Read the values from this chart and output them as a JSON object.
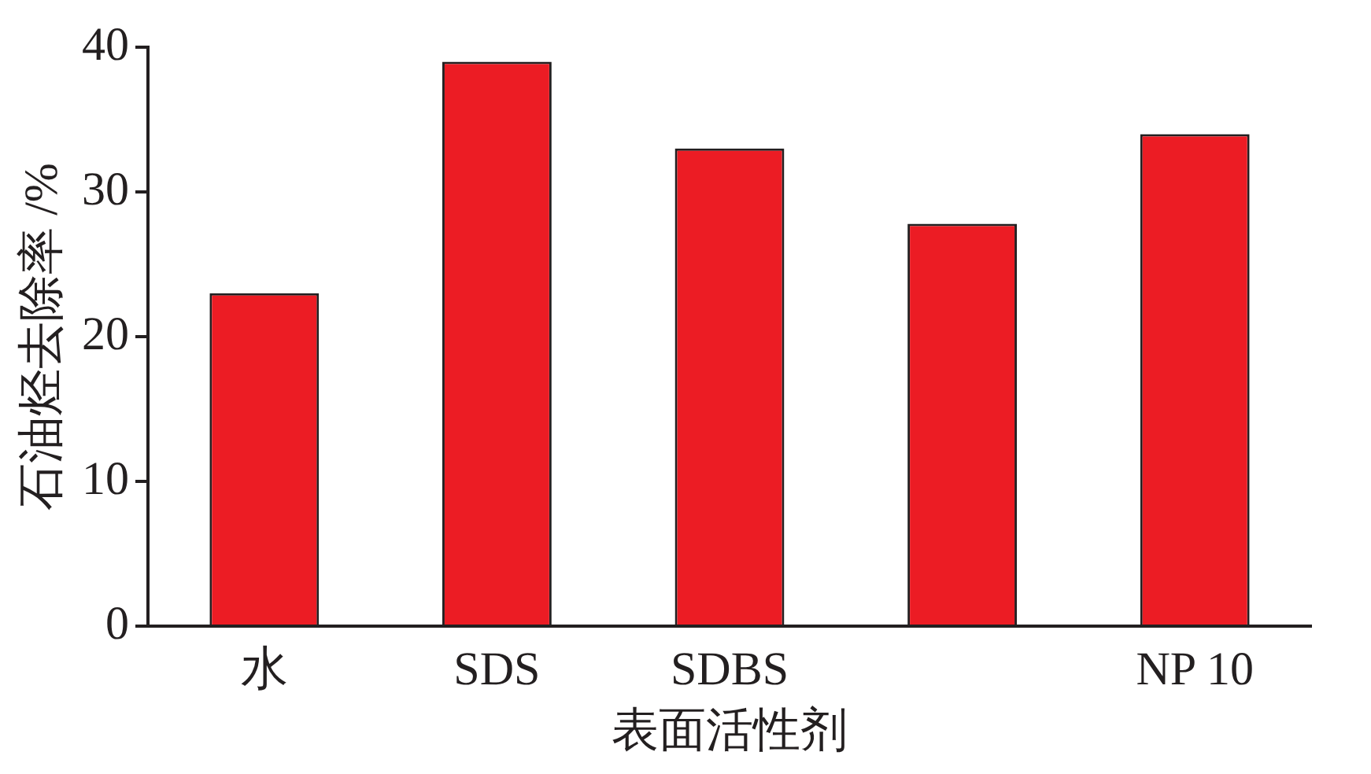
{
  "chart_data": {
    "type": "bar",
    "xlabel": "表面活性剂",
    "ylabel": "石油烃去除率 /%",
    "categories": [
      "水",
      "SDS",
      "SDBS",
      null,
      "NP 10"
    ],
    "values": [
      23,
      39,
      33,
      27.8,
      34
    ],
    "color": "#ec1c24",
    "ylim": [
      0,
      40
    ],
    "yticks": [
      0,
      10,
      20,
      30,
      40
    ]
  }
}
